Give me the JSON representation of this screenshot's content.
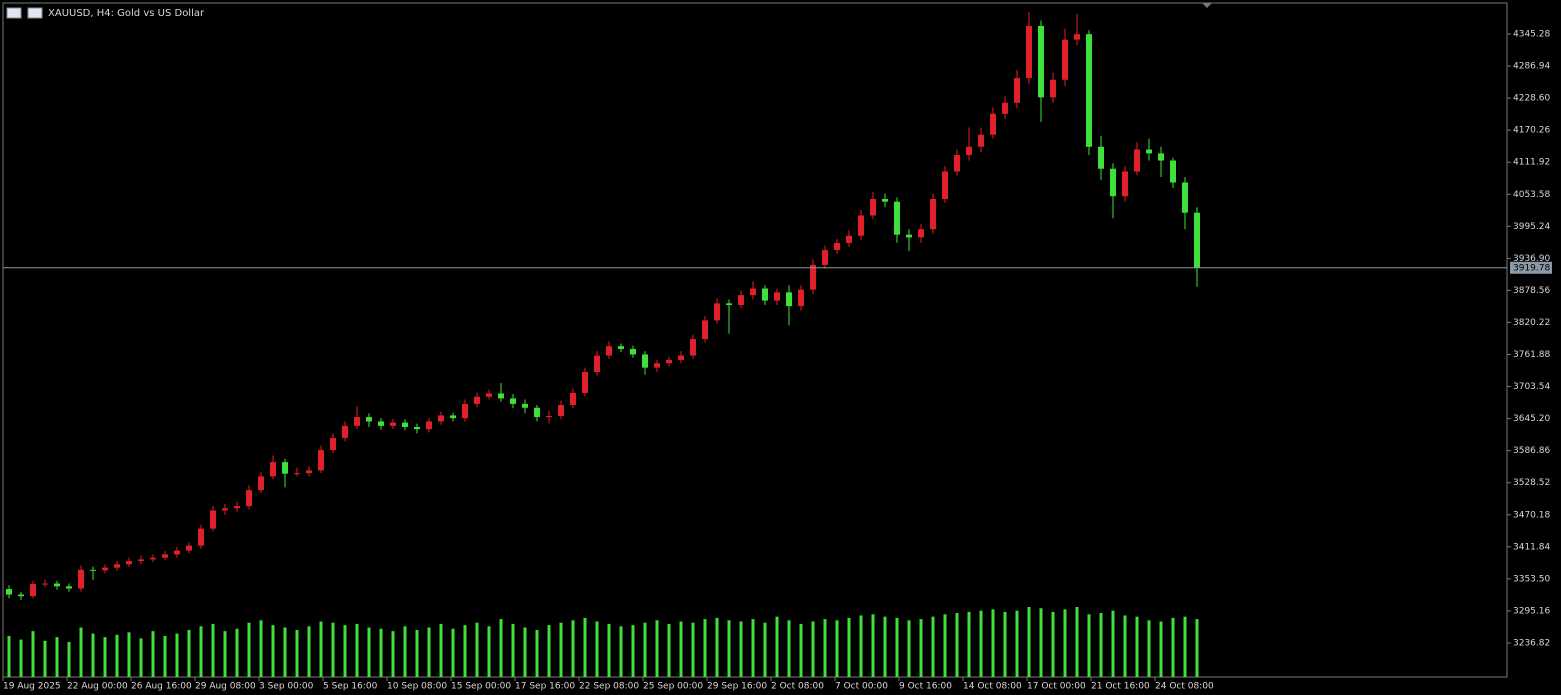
{
  "chart_data": {
    "type": "candlestick",
    "title": "XAUUSD, H4:  Gold vs US Dollar",
    "up_color": "#e0202a",
    "down_color": "#3fe03a",
    "volume_color": "#3fe03a",
    "ylim": [
      3174.9,
      4401.7
    ],
    "yticks": [
      3236.82,
      3295.16,
      {
        "value": 3353.5,
        "label": "3353.50"
      },
      3411.84,
      3470.18,
      3528.52,
      3586.86,
      {
        "value": 3645.2,
        "label": "3645.20"
      },
      3703.54,
      3761.88,
      3820.22,
      3878.56,
      {
        "value": 3936.9,
        "label": "3936.90"
      },
      3995.24,
      4053.58,
      4111.92,
      4170.26,
      {
        "value": 4228.6,
        "label": "4228.60"
      },
      4286.94,
      4345.28
    ],
    "xtick_labels": [
      "19 Aug 2025",
      "22 Aug 00:00",
      "26 Aug 16:00",
      "29 Aug 08:00",
      "3 Sep 00:00",
      "5 Sep 16:00",
      "10 Sep 08:00",
      "15 Sep 00:00",
      "17 Sep 16:00",
      "22 Sep 08:00",
      "25 Sep 00:00",
      "29 Sep 16:00",
      "2 Oct 08:00",
      "7 Oct 00:00",
      "9 Oct 16:00",
      "14 Oct 08:00",
      "17 Oct 00:00",
      "21 Oct 16:00",
      "24 Oct 08:00"
    ],
    "last_price": 3919.78,
    "open": [
      3335,
      3325,
      3322,
      3344,
      3345,
      3340,
      3336,
      3370,
      3369,
      3374,
      3380,
      3386,
      3389,
      3392,
      3398,
      3405,
      3414,
      3445,
      3478,
      3482,
      3486,
      3515,
      3540,
      3566,
      3545,
      3546,
      3551,
      3588,
      3610,
      3632,
      3648,
      3640,
      3632,
      3638,
      3630,
      3626,
      3640,
      3651,
      3646,
      3672,
      3685,
      3691,
      3682,
      3672,
      3665,
      3648,
      3650,
      3670,
      3692,
      3730,
      3760,
      3777,
      3772,
      3762,
      3738,
      3746,
      3752,
      3760,
      3790,
      3824,
      3855,
      3852,
      3870,
      3882,
      3860,
      3875,
      3850,
      3880,
      3925,
      3952,
      3965,
      3978,
      4015,
      4045,
      4040,
      3980,
      3975,
      3990,
      4045,
      4095,
      4125,
      4140,
      4162,
      4200,
      4220,
      4265,
      4360,
      4230,
      4262,
      4335,
      4345,
      4140,
      4100,
      4050,
      4095,
      4135,
      4128,
      4115,
      4075,
      4020
    ],
    "high": [
      3342,
      3330,
      3350,
      3352,
      3350,
      3345,
      3378,
      3376,
      3380,
      3386,
      3392,
      3396,
      3398,
      3404,
      3412,
      3420,
      3452,
      3486,
      3490,
      3494,
      3524,
      3548,
      3578,
      3572,
      3556,
      3558,
      3596,
      3618,
      3640,
      3668,
      3655,
      3646,
      3645,
      3644,
      3636,
      3646,
      3658,
      3656,
      3680,
      3692,
      3698,
      3710,
      3690,
      3680,
      3670,
      3660,
      3678,
      3700,
      3738,
      3768,
      3786,
      3782,
      3778,
      3768,
      3752,
      3758,
      3768,
      3798,
      3832,
      3864,
      3862,
      3878,
      3895,
      3888,
      3882,
      3888,
      3888,
      3935,
      3960,
      3972,
      3988,
      4025,
      4058,
      4055,
      4048,
      3990,
      4000,
      4055,
      4105,
      4135,
      4175,
      4175,
      4212,
      4232,
      4280,
      4385,
      4370,
      4275,
      4355,
      4382,
      4352,
      4160,
      4110,
      4105,
      4148,
      4155,
      4140,
      4120,
      4085,
      4030
    ],
    "low": [
      3318,
      3315,
      3318,
      3338,
      3334,
      3330,
      3330,
      3352,
      3364,
      3368,
      3375,
      3380,
      3384,
      3388,
      3392,
      3400,
      3408,
      3440,
      3470,
      3476,
      3480,
      3510,
      3535,
      3520,
      3540,
      3540,
      3546,
      3582,
      3604,
      3626,
      3630,
      3625,
      3626,
      3624,
      3618,
      3620,
      3634,
      3640,
      3640,
      3666,
      3680,
      3676,
      3664,
      3655,
      3640,
      3636,
      3644,
      3664,
      3686,
      3724,
      3754,
      3766,
      3756,
      3725,
      3730,
      3740,
      3746,
      3754,
      3784,
      3818,
      3800,
      3846,
      3862,
      3852,
      3852,
      3815,
      3842,
      3872,
      3918,
      3945,
      3958,
      3970,
      4008,
      4030,
      3965,
      3950,
      3965,
      3982,
      4038,
      4088,
      4115,
      4130,
      4155,
      4190,
      4210,
      4255,
      4185,
      4220,
      4250,
      4325,
      4125,
      4080,
      4010,
      4040,
      4088,
      4115,
      4085,
      4065,
      3990,
      3885
    ],
    "close": [
      3325,
      3322,
      3344,
      3345,
      3340,
      3336,
      3370,
      3369,
      3374,
      3380,
      3386,
      3389,
      3392,
      3398,
      3405,
      3414,
      3445,
      3478,
      3482,
      3486,
      3515,
      3540,
      3566,
      3545,
      3546,
      3551,
      3588,
      3610,
      3632,
      3648,
      3640,
      3632,
      3638,
      3630,
      3626,
      3640,
      3651,
      3646,
      3672,
      3685,
      3691,
      3682,
      3672,
      3665,
      3648,
      3650,
      3670,
      3692,
      3730,
      3760,
      3777,
      3772,
      3762,
      3738,
      3746,
      3752,
      3760,
      3790,
      3824,
      3855,
      3852,
      3870,
      3882,
      3860,
      3875,
      3850,
      3880,
      3925,
      3952,
      3965,
      3978,
      4015,
      4045,
      4040,
      3980,
      3975,
      3990,
      4045,
      4095,
      4125,
      4140,
      4162,
      4200,
      4220,
      4265,
      4360,
      4230,
      4262,
      4335,
      4345,
      4140,
      4100,
      4050,
      4095,
      4135,
      4128,
      4115,
      4075,
      4020,
      3919.78
    ],
    "volume": [
      34,
      31,
      38,
      30,
      33,
      29,
      41,
      36,
      33,
      35,
      37,
      32,
      38,
      34,
      36,
      39,
      42,
      44,
      38,
      40,
      45,
      47,
      43,
      41,
      39,
      42,
      46,
      45,
      43,
      44,
      41,
      40,
      38,
      42,
      39,
      41,
      44,
      40,
      43,
      45,
      42,
      48,
      44,
      41,
      39,
      43,
      45,
      47,
      49,
      46,
      44,
      42,
      43,
      45,
      47,
      44,
      46,
      45,
      48,
      49,
      47,
      46,
      48,
      45,
      50,
      47,
      44,
      46,
      48,
      47,
      49,
      51,
      52,
      50,
      49,
      47,
      48,
      50,
      52,
      53,
      54,
      55,
      56,
      54,
      55,
      58,
      57,
      54,
      56,
      58,
      52,
      53,
      55,
      51,
      50,
      47,
      46,
      49,
      50,
      48
    ]
  }
}
